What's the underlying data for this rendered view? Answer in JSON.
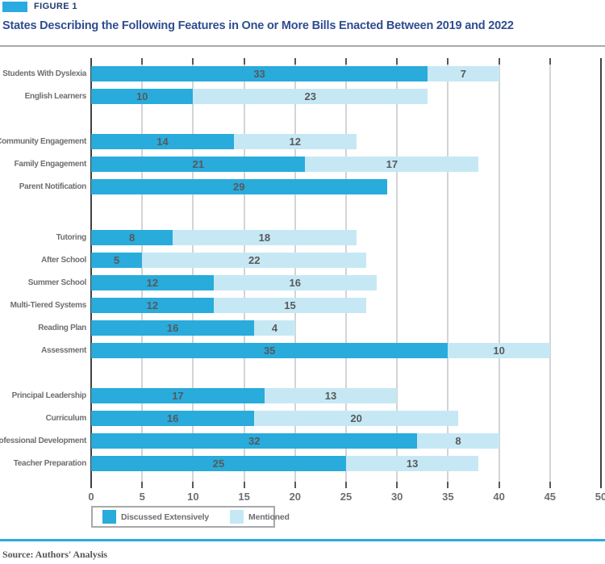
{
  "header": {
    "figure_label": "FIGURE 1",
    "title": "States Describing the Following Features in One or More Bills Enacted Between 2019 and 2022"
  },
  "legend": {
    "items": [
      {
        "label": "Discussed Extensively",
        "series": "discussed"
      },
      {
        "label": "Mentioned",
        "series": "mentioned"
      }
    ]
  },
  "footer": {
    "source": "Source: Authors' Analysis"
  },
  "colors": {
    "discussed": "#29abdc",
    "mentioned": "#c6e8f4",
    "accent": "#29abe2",
    "figure_label_text": "#1e3a6e",
    "title_text": "#2f4d8f",
    "value_text": "#58595b",
    "category_text": "#6d6e71",
    "gridline": "#d2d4d5",
    "axis": "#414042",
    "legend_border": "#a7a9ac"
  },
  "chart_data": {
    "type": "bar",
    "orientation": "horizontal",
    "stacked": true,
    "title": "States Describing the Following Features in One or More Bills Enacted Between 2019 and 2022",
    "xlabel": "",
    "ylabel": "",
    "xlim": [
      0,
      50
    ],
    "xticks": [
      0,
      5,
      10,
      15,
      20,
      25,
      30,
      35,
      40,
      45,
      50
    ],
    "grid": true,
    "legend_position": "bottom",
    "series_names": [
      "Discussed Extensively",
      "Mentioned"
    ],
    "groups": [
      {
        "rows": [
          {
            "label": "Students With Dyslexia",
            "values": [
              33,
              7
            ]
          },
          {
            "label": "English Learners",
            "values": [
              10,
              23
            ]
          }
        ]
      },
      {
        "rows": [
          {
            "label": "Community Engagement",
            "values": [
              14,
              12
            ]
          },
          {
            "label": "Family Engagement",
            "values": [
              21,
              17
            ]
          },
          {
            "label": "Parent Notification",
            "values": [
              29,
              0
            ]
          }
        ]
      },
      {
        "rows": [
          {
            "label": "Tutoring",
            "values": [
              8,
              18
            ]
          },
          {
            "label": "After School",
            "values": [
              5,
              22
            ]
          },
          {
            "label": "Summer School",
            "values": [
              12,
              16
            ]
          },
          {
            "label": "Multi-Tiered Systems",
            "values": [
              12,
              15
            ]
          },
          {
            "label": "Reading Plan",
            "values": [
              16,
              4
            ]
          },
          {
            "label": "Assessment",
            "values": [
              35,
              10
            ]
          }
        ]
      },
      {
        "rows": [
          {
            "label": "Principal Leadership",
            "values": [
              17,
              13
            ]
          },
          {
            "label": "Curriculum",
            "values": [
              16,
              20
            ]
          },
          {
            "label": "Professional Development",
            "values": [
              32,
              8
            ]
          },
          {
            "label": "Teacher Preparation",
            "values": [
              25,
              13
            ]
          }
        ]
      }
    ]
  }
}
